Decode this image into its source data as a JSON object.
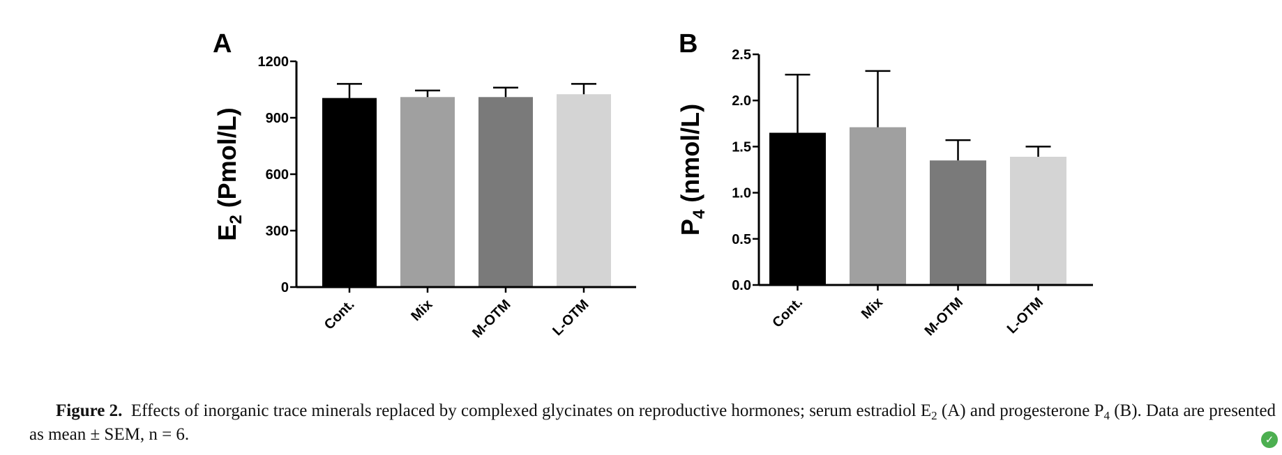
{
  "chart_data": [
    {
      "type": "bar",
      "panel": "A",
      "categories": [
        "Cont.",
        "Mix",
        "M-OTM",
        "L-OTM"
      ],
      "values": [
        1005,
        1010,
        1010,
        1025
      ],
      "errors": [
        75,
        35,
        50,
        55
      ],
      "colors": [
        "#000000",
        "#a0a0a0",
        "#7a7a7a",
        "#d4d4d4"
      ],
      "ylabel_main": "E",
      "ylabel_sub": "2",
      "ylabel_rest": " (Pmol/L)",
      "yticks": [
        0,
        300,
        600,
        900,
        1200
      ],
      "ytick_labels": [
        "0",
        "300",
        "600",
        "900",
        "1200"
      ],
      "ylim": [
        0,
        1200
      ]
    },
    {
      "type": "bar",
      "panel": "B",
      "categories": [
        "Cont.",
        "Mix",
        "M-OTM",
        "L-OTM"
      ],
      "values": [
        1.65,
        1.71,
        1.35,
        1.39
      ],
      "errors": [
        0.63,
        0.61,
        0.22,
        0.11
      ],
      "colors": [
        "#000000",
        "#a0a0a0",
        "#7a7a7a",
        "#d4d4d4"
      ],
      "ylabel_main": "P",
      "ylabel_sub": "4",
      "ylabel_rest": " (nmol/L)",
      "yticks": [
        0,
        0.5,
        1.0,
        1.5,
        2.0,
        2.5
      ],
      "ytick_labels": [
        "0.0",
        "0.5",
        "1.0",
        "1.5",
        "2.0",
        "2.5"
      ],
      "ylim": [
        0,
        2.5
      ]
    }
  ],
  "caption": {
    "label": "Figure 2.",
    "text_1": "Effects of inorganic trace minerals replaced by complexed glycinates on reproductive hormones; serum estradiol E",
    "sub_1": "2",
    "text_2": " (A) and progesterone P",
    "sub_2": "4",
    "text_3": " (B). Data are presented as mean ± SEM, n = 6."
  },
  "badge": {
    "icon": "leaf-check-icon",
    "glyph": "✓"
  }
}
